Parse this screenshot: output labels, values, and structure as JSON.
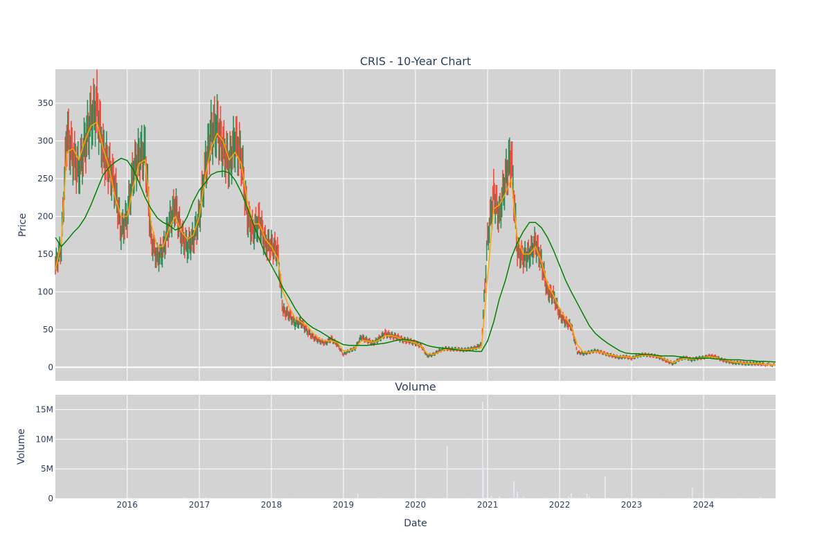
{
  "chart_data": [
    {
      "type": "line",
      "title": "CRIS - 10-Year Chart",
      "ylabel": "Price",
      "xlabel": "",
      "x_axis_type": "date",
      "xlim": [
        "2015-01-02",
        "2024-12-31"
      ],
      "ylim": [
        -18,
        395
      ],
      "y_ticks": [
        0,
        50,
        100,
        150,
        200,
        250,
        300,
        350
      ],
      "x_ticks": [
        "2016",
        "2017",
        "2018",
        "2019",
        "2020",
        "2021",
        "2022",
        "2023",
        "2024"
      ],
      "grid": true,
      "plot_background": "#d3d3d3",
      "price_colors": {
        "up": "#2e8b57",
        "down": "#ef4b3c"
      },
      "price_series": {
        "x": [
          "2015-01-02",
          "2015-02-01",
          "2015-03-01",
          "2015-04-01",
          "2015-05-01",
          "2015-06-01",
          "2015-07-01",
          "2015-08-01",
          "2015-09-01",
          "2015-10-01",
          "2015-11-01",
          "2015-12-01",
          "2016-01-01",
          "2016-02-01",
          "2016-03-01",
          "2016-04-01",
          "2016-05-01",
          "2016-06-01",
          "2016-07-01",
          "2016-08-01",
          "2016-09-01",
          "2016-10-01",
          "2016-11-01",
          "2016-12-01",
          "2017-01-01",
          "2017-02-01",
          "2017-03-01",
          "2017-04-01",
          "2017-05-01",
          "2017-06-01",
          "2017-07-01",
          "2017-08-01",
          "2017-09-01",
          "2017-10-01",
          "2017-11-01",
          "2017-12-01",
          "2018-01-01",
          "2018-02-01",
          "2018-03-01",
          "2018-04-01",
          "2018-05-01",
          "2018-06-01",
          "2018-07-01",
          "2018-08-01",
          "2018-09-01",
          "2018-10-01",
          "2018-11-01",
          "2018-12-01",
          "2019-01-01",
          "2019-02-01",
          "2019-03-01",
          "2019-04-01",
          "2019-05-01",
          "2019-06-01",
          "2019-07-01",
          "2019-08-01",
          "2019-09-01",
          "2019-10-01",
          "2019-11-01",
          "2019-12-01",
          "2020-01-01",
          "2020-02-01",
          "2020-03-01",
          "2020-04-01",
          "2020-05-01",
          "2020-06-01",
          "2020-07-01",
          "2020-08-01",
          "2020-09-01",
          "2020-10-01",
          "2020-11-01",
          "2020-12-01",
          "2021-01-01",
          "2021-02-01",
          "2021-03-01",
          "2021-04-01",
          "2021-05-01",
          "2021-06-01",
          "2021-07-01",
          "2021-08-01",
          "2021-09-01",
          "2021-10-01",
          "2021-11-01",
          "2021-12-01",
          "2022-01-01",
          "2022-02-01",
          "2022-03-01",
          "2022-04-01",
          "2022-05-01",
          "2022-06-01",
          "2022-07-01",
          "2022-08-01",
          "2022-09-01",
          "2022-10-01",
          "2022-11-01",
          "2022-12-01",
          "2023-01-01",
          "2023-02-01",
          "2023-03-01",
          "2023-04-01",
          "2023-05-01",
          "2023-06-01",
          "2023-07-01",
          "2023-08-01",
          "2023-09-01",
          "2023-10-01",
          "2023-11-01",
          "2023-12-01",
          "2024-01-01",
          "2024-02-01",
          "2024-03-01",
          "2024-04-01",
          "2024-05-01",
          "2024-06-01",
          "2024-07-01",
          "2024-08-01",
          "2024-09-01",
          "2024-10-01",
          "2024-11-01",
          "2024-12-31"
        ],
        "close": [
          135,
          160,
          310,
          280,
          260,
          295,
          330,
          345,
          285,
          265,
          240,
          180,
          200,
          260,
          280,
          285,
          170,
          145,
          155,
          190,
          215,
          175,
          160,
          170,
          200,
          265,
          310,
          320,
          290,
          270,
          300,
          280,
          200,
          180,
          195,
          165,
          160,
          155,
          75,
          70,
          58,
          60,
          48,
          40,
          35,
          32,
          38,
          30,
          17,
          22,
          25,
          40,
          36,
          32,
          38,
          45,
          42,
          40,
          36,
          35,
          32,
          28,
          15,
          17,
          22,
          25,
          24,
          24,
          23,
          24,
          26,
          30,
          170,
          230,
          200,
          250,
          280,
          155,
          145,
          150,
          165,
          140,
          100,
          95,
          70,
          60,
          55,
          20,
          18,
          20,
          22,
          20,
          17,
          15,
          13,
          14,
          12,
          15,
          17,
          16,
          15,
          12,
          8,
          5,
          11,
          13,
          10,
          12,
          13,
          15,
          14,
          10,
          8,
          6,
          6,
          5,
          5,
          5,
          4,
          3
        ]
      },
      "series": [
        {
          "style": "moving-average-short",
          "color": "#ffa500",
          "x": [
            "2015-01-02",
            "2015-02-01",
            "2015-03-01",
            "2015-04-01",
            "2015-05-01",
            "2015-06-01",
            "2015-07-01",
            "2015-08-01",
            "2015-09-01",
            "2015-10-01",
            "2015-11-01",
            "2015-12-01",
            "2016-01-01",
            "2016-02-01",
            "2016-03-01",
            "2016-04-01",
            "2016-05-01",
            "2016-06-01",
            "2016-07-01",
            "2016-08-01",
            "2016-09-01",
            "2016-10-01",
            "2016-11-01",
            "2016-12-01",
            "2017-01-01",
            "2017-02-01",
            "2017-03-01",
            "2017-04-01",
            "2017-05-01",
            "2017-06-01",
            "2017-07-01",
            "2017-08-01",
            "2017-09-01",
            "2017-10-01",
            "2017-11-01",
            "2017-12-01",
            "2018-01-01",
            "2018-02-01",
            "2018-03-01",
            "2018-04-01",
            "2018-05-01",
            "2018-06-01",
            "2018-07-01",
            "2018-08-01",
            "2018-09-01",
            "2018-10-01",
            "2018-11-01",
            "2018-12-01",
            "2019-01-01",
            "2019-02-01",
            "2019-03-01",
            "2019-04-01",
            "2019-05-01",
            "2019-06-01",
            "2019-07-01",
            "2019-08-01",
            "2019-09-01",
            "2019-10-01",
            "2019-11-01",
            "2019-12-01",
            "2020-01-01",
            "2020-02-01",
            "2020-03-01",
            "2020-04-01",
            "2020-05-01",
            "2020-06-01",
            "2020-07-01",
            "2020-08-01",
            "2020-09-01",
            "2020-10-01",
            "2020-11-01",
            "2020-12-01",
            "2021-01-01",
            "2021-02-01",
            "2021-03-01",
            "2021-04-01",
            "2021-05-01",
            "2021-06-01",
            "2021-07-01",
            "2021-08-01",
            "2021-09-01",
            "2021-10-01",
            "2021-11-01",
            "2021-12-01",
            "2022-01-01",
            "2022-02-01",
            "2022-03-01",
            "2022-04-01",
            "2022-05-01",
            "2022-06-01",
            "2022-07-01",
            "2022-08-01",
            "2022-09-01",
            "2022-10-01",
            "2022-11-01",
            "2022-12-01",
            "2023-01-01",
            "2023-02-01",
            "2023-03-01",
            "2023-04-01",
            "2023-05-01",
            "2023-06-01",
            "2023-07-01",
            "2023-08-01",
            "2023-09-01",
            "2023-10-01",
            "2023-11-01",
            "2023-12-01",
            "2024-01-01",
            "2024-02-01",
            "2024-03-01",
            "2024-04-01",
            "2024-05-01",
            "2024-06-01",
            "2024-07-01",
            "2024-08-01",
            "2024-09-01",
            "2024-10-01",
            "2024-11-01",
            "2024-12-31"
          ],
          "y": [
            130,
            165,
            285,
            290,
            275,
            300,
            320,
            325,
            290,
            265,
            225,
            200,
            200,
            240,
            270,
            275,
            190,
            160,
            160,
            185,
            200,
            180,
            170,
            175,
            200,
            255,
            290,
            310,
            300,
            275,
            285,
            270,
            220,
            190,
            190,
            170,
            160,
            145,
            100,
            80,
            65,
            60,
            55,
            45,
            38,
            35,
            35,
            33,
            22,
            22,
            25,
            35,
            35,
            33,
            36,
            42,
            42,
            40,
            36,
            35,
            32,
            28,
            18,
            17,
            20,
            24,
            24,
            24,
            23,
            24,
            25,
            26,
            120,
            210,
            215,
            230,
            250,
            170,
            150,
            150,
            160,
            140,
            110,
            95,
            78,
            65,
            55,
            30,
            20,
            20,
            21,
            20,
            17,
            16,
            14,
            14,
            13,
            14,
            16,
            16,
            15,
            13,
            9,
            6,
            10,
            12,
            11,
            12,
            13,
            14,
            13,
            11,
            9,
            7,
            6,
            5,
            5,
            5,
            4,
            3
          ]
        },
        {
          "style": "moving-average-long",
          "color": "#008000",
          "x": [
            "2015-01-02",
            "2015-02-01",
            "2015-03-01",
            "2015-04-01",
            "2015-05-01",
            "2015-06-01",
            "2015-07-01",
            "2015-08-01",
            "2015-09-01",
            "2015-10-01",
            "2015-11-01",
            "2015-12-01",
            "2016-01-01",
            "2016-02-01",
            "2016-03-01",
            "2016-04-01",
            "2016-05-01",
            "2016-06-01",
            "2016-07-01",
            "2016-08-01",
            "2016-09-01",
            "2016-10-01",
            "2016-11-01",
            "2016-12-01",
            "2017-01-01",
            "2017-02-01",
            "2017-03-01",
            "2017-04-01",
            "2017-05-01",
            "2017-06-01",
            "2017-07-01",
            "2017-08-01",
            "2017-09-01",
            "2017-10-01",
            "2017-11-01",
            "2017-12-01",
            "2018-01-01",
            "2018-02-01",
            "2018-03-01",
            "2018-04-01",
            "2018-05-01",
            "2018-06-01",
            "2018-07-01",
            "2018-08-01",
            "2018-09-01",
            "2018-10-01",
            "2018-11-01",
            "2018-12-01",
            "2019-01-01",
            "2019-02-01",
            "2019-03-01",
            "2019-04-01",
            "2019-05-01",
            "2019-06-01",
            "2019-07-01",
            "2019-08-01",
            "2019-09-01",
            "2019-10-01",
            "2019-11-01",
            "2019-12-01",
            "2020-01-01",
            "2020-02-01",
            "2020-03-01",
            "2020-04-01",
            "2020-05-01",
            "2020-06-01",
            "2020-07-01",
            "2020-08-01",
            "2020-09-01",
            "2020-10-01",
            "2020-11-01",
            "2020-12-01",
            "2021-01-01",
            "2021-02-01",
            "2021-03-01",
            "2021-04-01",
            "2021-05-01",
            "2021-06-01",
            "2021-07-01",
            "2021-08-01",
            "2021-09-01",
            "2021-10-01",
            "2021-11-01",
            "2021-12-01",
            "2022-01-01",
            "2022-02-01",
            "2022-03-01",
            "2022-04-01",
            "2022-05-01",
            "2022-06-01",
            "2022-07-01",
            "2022-08-01",
            "2022-09-01",
            "2022-10-01",
            "2022-11-01",
            "2022-12-01",
            "2023-01-01",
            "2023-02-01",
            "2023-03-01",
            "2023-04-01",
            "2023-05-01",
            "2023-06-01",
            "2023-07-01",
            "2023-08-01",
            "2023-09-01",
            "2023-10-01",
            "2023-11-01",
            "2023-12-01",
            "2024-01-01",
            "2024-02-01",
            "2024-03-01",
            "2024-04-01",
            "2024-05-01",
            "2024-06-01",
            "2024-07-01",
            "2024-08-01",
            "2024-09-01",
            "2024-10-01",
            "2024-11-01",
            "2024-12-31"
          ],
          "y": [
            172,
            160,
            168,
            178,
            186,
            198,
            215,
            235,
            255,
            265,
            272,
            277,
            274,
            262,
            245,
            225,
            210,
            198,
            192,
            188,
            182,
            185,
            200,
            220,
            235,
            245,
            255,
            259,
            260,
            258,
            248,
            232,
            212,
            190,
            170,
            150,
            135,
            120,
            105,
            92,
            78,
            66,
            58,
            52,
            48,
            43,
            38,
            34,
            30,
            29,
            29,
            29,
            29,
            30,
            31,
            32,
            34,
            36,
            37,
            36,
            35,
            32,
            29,
            27,
            26,
            25,
            24,
            23,
            22,
            22,
            21,
            21,
            35,
            60,
            90,
            115,
            145,
            165,
            180,
            192,
            192,
            185,
            172,
            155,
            135,
            115,
            100,
            85,
            70,
            55,
            45,
            38,
            32,
            27,
            22,
            19,
            18,
            18,
            17,
            17,
            16,
            15,
            15,
            15,
            14,
            13,
            12,
            12,
            12,
            12,
            11,
            11,
            10,
            10,
            10,
            9,
            9,
            8,
            8,
            7
          ]
        }
      ]
    },
    {
      "type": "bar",
      "title": "Volume",
      "ylabel": "Volume",
      "xlabel": "Date",
      "x_axis_type": "date",
      "xlim": [
        "2015-01-02",
        "2024-12-31"
      ],
      "ylim": [
        0,
        17500000
      ],
      "y_ticks": [
        0,
        5000000,
        10000000,
        15000000
      ],
      "y_tick_labels": [
        "0",
        "5M",
        "10M",
        "15M"
      ],
      "x_ticks": [
        "2016",
        "2017",
        "2018",
        "2019",
        "2020",
        "2021",
        "2022",
        "2023",
        "2024"
      ],
      "grid": true,
      "bar_color": "#e6e6f0",
      "plot_background": "#d3d3d3",
      "x": [
        "2015-03-01",
        "2016-01-10",
        "2016-10-15",
        "2017-02-01",
        "2018-04-01",
        "2019-03-15",
        "2019-07-01",
        "2020-03-01",
        "2020-06-10",
        "2020-10-01",
        "2020-12-07",
        "2020-12-10",
        "2021-01-20",
        "2021-03-01",
        "2021-05-15",
        "2021-06-01",
        "2021-07-01",
        "2021-11-01",
        "2022-02-15",
        "2022-03-01",
        "2022-04-10",
        "2022-05-20",
        "2022-06-01",
        "2022-08-20",
        "2023-01-01",
        "2023-06-01",
        "2023-11-05",
        "2024-03-01",
        "2024-07-01",
        "2024-10-15"
      ],
      "values": [
        150000,
        200000,
        250000,
        250000,
        100000,
        800000,
        200000,
        200000,
        8900000,
        150000,
        16300000,
        4800000,
        500000,
        400000,
        2900000,
        1100000,
        400000,
        200000,
        400000,
        900000,
        200000,
        800000,
        400000,
        3700000,
        150000,
        150000,
        1800000,
        200000,
        150000,
        300000
      ]
    }
  ]
}
